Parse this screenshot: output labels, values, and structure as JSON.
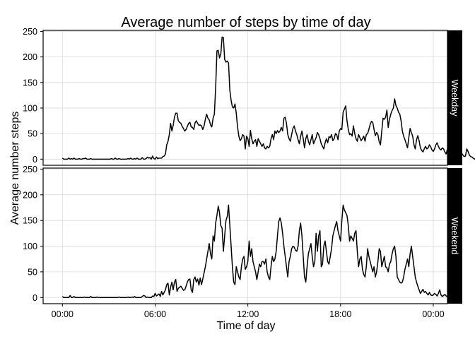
{
  "chart_data": {
    "type": "line",
    "title": "Average number of steps by time of day",
    "xlabel": "Time of day",
    "ylabel": "Average number steps",
    "x_ticks": [
      "00:00",
      "06:00",
      "12:00",
      "18:00",
      "00:00"
    ],
    "x_tick_minutes": [
      0,
      360,
      720,
      1080,
      1440
    ],
    "xlim_minutes": [
      -75,
      1495
    ],
    "ylim": [
      -12,
      252
    ],
    "y_ticks": [
      0,
      50,
      100,
      150,
      200,
      250
    ],
    "grid": true,
    "interval_minutes": 5,
    "panels": [
      {
        "label": "Weekday",
        "values": [
          2,
          0,
          0,
          0,
          0,
          2,
          0,
          1,
          0,
          2,
          0,
          0,
          0,
          1,
          0,
          0,
          1,
          1,
          2,
          0,
          0,
          0,
          1,
          0,
          0,
          0,
          0,
          0,
          0,
          0,
          0,
          0,
          0,
          0,
          0,
          0,
          0,
          0,
          1,
          0,
          0,
          2,
          0,
          0,
          1,
          0,
          0,
          0,
          0,
          0,
          0,
          1,
          0,
          2,
          0,
          0,
          1,
          0,
          2,
          0,
          0,
          0,
          3,
          0,
          0,
          1,
          4,
          2,
          3,
          0,
          6,
          1,
          0,
          4,
          1,
          2,
          2,
          2,
          5,
          6,
          10,
          28,
          35,
          48,
          70,
          55,
          66,
          82,
          90,
          90,
          75,
          72,
          70,
          64,
          60,
          55,
          58,
          64,
          70,
          72,
          63,
          62,
          58,
          71,
          75,
          70,
          66,
          67,
          65,
          58,
          65,
          78,
          88,
          80,
          77,
          67,
          63,
          80,
          88,
          140,
          212,
          213,
          198,
          206,
          239,
          238,
          195,
          190,
          192,
          188,
          135,
          115,
          102,
          100,
          108,
          90,
          63,
          45,
          36,
          40,
          48,
          45,
          20,
          45,
          40,
          25,
          56,
          40,
          30,
          35,
          38,
          25,
          40,
          35,
          30,
          25,
          30,
          22,
          20,
          25,
          22,
          25,
          40,
          48,
          38,
          55,
          50,
          56,
          52,
          55,
          62,
          55,
          80,
          82,
          70,
          48,
          40,
          35,
          48,
          60,
          65,
          55,
          48,
          38,
          30,
          45,
          55,
          40,
          22,
          40,
          48,
          35,
          28,
          38,
          48,
          30,
          36,
          42,
          52,
          48,
          40,
          30,
          25,
          20,
          32,
          40,
          32,
          44,
          42,
          48,
          36,
          40,
          50,
          48,
          38,
          55,
          60,
          58,
          92,
          98,
          104,
          75,
          58,
          48,
          50,
          45,
          65,
          50,
          40,
          35,
          48,
          42,
          36,
          40,
          45,
          35,
          48,
          50,
          58,
          68,
          74,
          72,
          58,
          46,
          52,
          48,
          34,
          28,
          55,
          80,
          78,
          82,
          96,
          62,
          78,
          88,
          95,
          100,
          118,
          105,
          100,
          92,
          88,
          75,
          55,
          45,
          38,
          30,
          22,
          42,
          60,
          52,
          45,
          28,
          20,
          38,
          46,
          36,
          22,
          17,
          14,
          20,
          25,
          20,
          22,
          28,
          24,
          18,
          15,
          20,
          28,
          32,
          25,
          20,
          18,
          22,
          20,
          14,
          10,
          20,
          22,
          18,
          14,
          20,
          12,
          8,
          5,
          3,
          8,
          10,
          12,
          8,
          5,
          6,
          20,
          15,
          8,
          5,
          4,
          2,
          0,
          2,
          4,
          1,
          0,
          0,
          3,
          5,
          2,
          3,
          4,
          5,
          3,
          2
        ]
      },
      {
        "label": "Weekend",
        "values": [
          2,
          0,
          0,
          0,
          0,
          0,
          4,
          0,
          0,
          2,
          0,
          0,
          0,
          0,
          0,
          0,
          0,
          1,
          0,
          0,
          0,
          0,
          2,
          0,
          0,
          0,
          0,
          1,
          0,
          0,
          0,
          0,
          0,
          0,
          0,
          0,
          0,
          0,
          0,
          0,
          0,
          0,
          0,
          0,
          1,
          0,
          0,
          0,
          0,
          0,
          0,
          1,
          0,
          0,
          1,
          0,
          2,
          0,
          0,
          0,
          0,
          0,
          2,
          4,
          3,
          0,
          1,
          0,
          0,
          0,
          3,
          2,
          8,
          3,
          5,
          7,
          2,
          12,
          5,
          10,
          15,
          25,
          28,
          5,
          20,
          30,
          15,
          30,
          35,
          12,
          18,
          20,
          22,
          18,
          14,
          15,
          22,
          30,
          35,
          36,
          15,
          10,
          35,
          40,
          30,
          36,
          24,
          38,
          25,
          36,
          48,
          60,
          75,
          90,
          105,
          85,
          75,
          120,
          110,
          145,
          160,
          178,
          165,
          140,
          135,
          90,
          120,
          150,
          158,
          180,
          140,
          100,
          60,
          30,
          25,
          60,
          50,
          40,
          35,
          60,
          75,
          80,
          55,
          60,
          70,
          110,
          80,
          95,
          70,
          60,
          50,
          35,
          50,
          65,
          60,
          70,
          70,
          65,
          75,
          50,
          40,
          35,
          60,
          80,
          70,
          75,
          90,
          120,
          148,
          155,
          145,
          125,
          100,
          80,
          60,
          40,
          70,
          80,
          95,
          100,
          98,
          92,
          90,
          100,
          130,
          145,
          120,
          80,
          40,
          30,
          60,
          85,
          95,
          105,
          80,
          60,
          70,
          125,
          90,
          120,
          130,
          60,
          65,
          100,
          110,
          90,
          70,
          65,
          80,
          95,
          120,
          130,
          140,
          148,
          130,
          120,
          110,
          150,
          180,
          170,
          165,
          160,
          140,
          110,
          120,
          115,
          110,
          125,
          130,
          90,
          60,
          75,
          80,
          55,
          45,
          40,
          60,
          95,
          80,
          70,
          60,
          50,
          60,
          40,
          50,
          70,
          95,
          90,
          60,
          70,
          80,
          60,
          58,
          50,
          65,
          70,
          85,
          95,
          100,
          80,
          40,
          35,
          30,
          28,
          30,
          40,
          55,
          65,
          75,
          60,
          85,
          100,
          80,
          60,
          40,
          30,
          22,
          15,
          8,
          12,
          16,
          10,
          12,
          8,
          5,
          10,
          5,
          4,
          5,
          8,
          6,
          3,
          8,
          15,
          5,
          2,
          4,
          6,
          3,
          2,
          5,
          8,
          12,
          16,
          10,
          5,
          2,
          0
        ]
      }
    ]
  }
}
